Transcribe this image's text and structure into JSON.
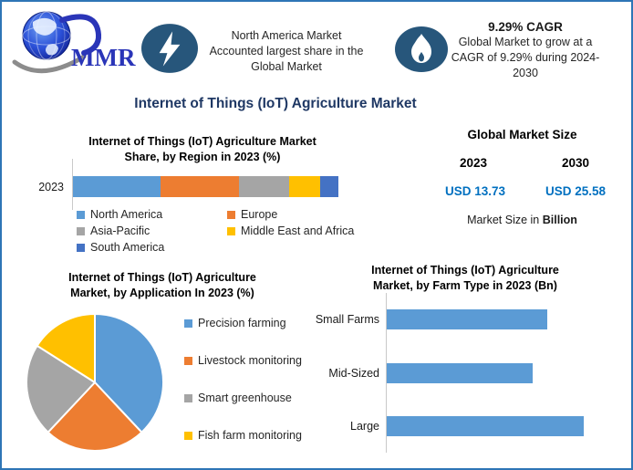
{
  "brand": {
    "logo_text": "MMR"
  },
  "header": {
    "highlight_share": {
      "icon": "lightning-icon",
      "lines": [
        "North America Market",
        "Accounted largest share in the",
        "Global Market"
      ]
    },
    "highlight_cagr": {
      "icon": "flame-icon",
      "title": "9.29% CAGR",
      "lines": [
        "Global Market to grow at a",
        "CAGR of 9.29% during 2024-",
        "2030"
      ]
    }
  },
  "main_title": "Internet of Things (IoT) Agriculture Market",
  "market_size": {
    "title": "Global Market Size",
    "year_1": "2023",
    "year_2": "2030",
    "value_1": "USD 13.73",
    "value_2": "USD 25.58",
    "note_regular": "Market Size in ",
    "note_bold": "Billion"
  },
  "colors": {
    "value_blue": "#0070C0",
    "icon_circle": "#27567B",
    "title_navy": "#1F3864",
    "border_blue": "#2E75B6",
    "bar_blue": "#5B9BD5"
  },
  "chart_data": [
    {
      "type": "bar",
      "subtype": "stacked-horizontal",
      "title": "Internet of Things (IoT) Agriculture Market Share, by Region in 2023 (%)",
      "title_lines": [
        "Internet of Things (IoT) Agriculture Market",
        "Share, by Region in 2023 (%)"
      ],
      "category": "2023",
      "unit": "%",
      "legend_position": "bottom",
      "series": [
        {
          "name": "North America",
          "value": 33,
          "color": "#5B9BD5"
        },
        {
          "name": "Europe",
          "value": 29.5,
          "color": "#ED7D31"
        },
        {
          "name": "Asia-Pacific",
          "value": 19,
          "color": "#A5A5A5"
        },
        {
          "name": "Middle East and Africa",
          "value": 11.5,
          "color": "#FFC000"
        },
        {
          "name": "South America",
          "value": 7,
          "color": "#4472C4"
        }
      ]
    },
    {
      "type": "pie",
      "title": "Internet of Things (IoT) Agriculture Market, by Application In 2023 (%)",
      "title_lines": [
        "Internet of Things (IoT) Agriculture",
        "Market, by Application In 2023 (%)"
      ],
      "start_angle_deg": 0,
      "legend_position": "right",
      "slices": [
        {
          "name": "Precision farming",
          "value": 38,
          "color": "#5B9BD5"
        },
        {
          "name": "Livestock monitoring",
          "value": 24,
          "color": "#ED7D31"
        },
        {
          "name": "Smart greenhouse",
          "value": 22,
          "color": "#A5A5A5"
        },
        {
          "name": "Fish farm monitoring",
          "value": 16,
          "color": "#FFC000"
        }
      ]
    },
    {
      "type": "bar",
      "subtype": "horizontal",
      "title": "Internet of Things (IoT) Agriculture Market, by Farm Type in 2023 (Bn)",
      "title_lines": [
        "Internet of Things (IoT) Agriculture",
        "Market, by Farm Type in 2023 (Bn)"
      ],
      "categories": [
        "Small Farms",
        "Mid-Sized",
        "Large"
      ],
      "values": [
        4.4,
        4.0,
        5.4
      ],
      "xlim": [
        0,
        6
      ],
      "unit": "Bn",
      "bar_color": "#5B9BD5"
    }
  ]
}
